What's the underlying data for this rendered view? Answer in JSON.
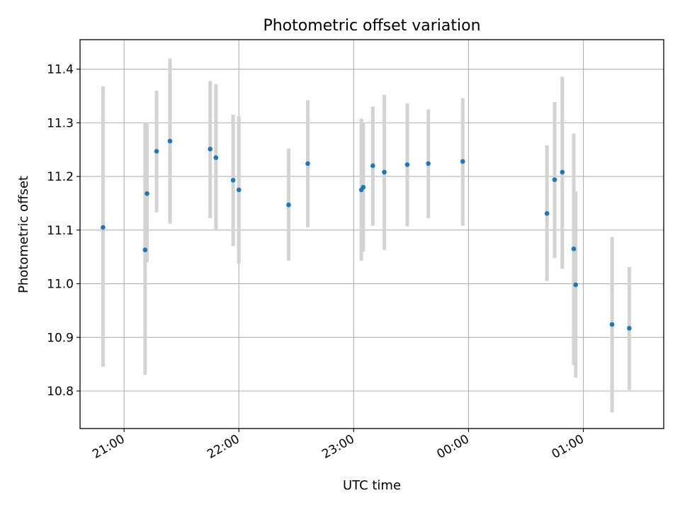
{
  "chart_data": {
    "type": "scatter",
    "title": "Photometric offset variation",
    "xlabel": "UTC time",
    "ylabel": "Photometric offset",
    "x_tick_labels": [
      "21:00",
      "22:00",
      "23:00",
      "00:00",
      "01:00"
    ],
    "y_tick_labels": [
      "10.8",
      "10.9",
      "11.0",
      "11.1",
      "11.2",
      "11.3",
      "11.4"
    ],
    "ylim": [
      10.73,
      11.455
    ],
    "xlim": [
      "20:37",
      "01:42"
    ],
    "grid": true,
    "point_color": "#1f77b4",
    "errorbar_color": "#d3d3d3",
    "points": [
      {
        "t": "20:49",
        "y": 11.105,
        "lo": 10.845,
        "hi": 11.368
      },
      {
        "t": "21:11",
        "y": 11.063,
        "lo": 10.83,
        "hi": 11.3
      },
      {
        "t": "21:12",
        "y": 11.168,
        "lo": 11.04,
        "hi": 11.298
      },
      {
        "t": "21:17",
        "y": 11.247,
        "lo": 11.133,
        "hi": 11.36
      },
      {
        "t": "21:24",
        "y": 11.266,
        "lo": 11.112,
        "hi": 11.42
      },
      {
        "t": "21:45",
        "y": 11.251,
        "lo": 11.122,
        "hi": 11.378
      },
      {
        "t": "21:48",
        "y": 11.235,
        "lo": 11.1,
        "hi": 11.372
      },
      {
        "t": "21:57",
        "y": 11.193,
        "lo": 11.07,
        "hi": 11.315
      },
      {
        "t": "22:00",
        "y": 11.175,
        "lo": 11.037,
        "hi": 11.312
      },
      {
        "t": "22:26",
        "y": 11.147,
        "lo": 11.043,
        "hi": 11.252
      },
      {
        "t": "22:36",
        "y": 11.224,
        "lo": 11.105,
        "hi": 11.342
      },
      {
        "t": "23:04",
        "y": 11.175,
        "lo": 11.043,
        "hi": 11.308
      },
      {
        "t": "23:05",
        "y": 11.18,
        "lo": 11.06,
        "hi": 11.3
      },
      {
        "t": "23:10",
        "y": 11.22,
        "lo": 11.108,
        "hi": 11.33
      },
      {
        "t": "23:16",
        "y": 11.208,
        "lo": 11.063,
        "hi": 11.352
      },
      {
        "t": "23:28",
        "y": 11.222,
        "lo": 11.107,
        "hi": 11.336
      },
      {
        "t": "23:39",
        "y": 11.224,
        "lo": 11.122,
        "hi": 11.325
      },
      {
        "t": "23:57",
        "y": 11.228,
        "lo": 11.108,
        "hi": 11.346
      },
      {
        "t": "00:41",
        "y": 11.131,
        "lo": 11.005,
        "hi": 11.258
      },
      {
        "t": "00:45",
        "y": 11.194,
        "lo": 11.048,
        "hi": 11.339
      },
      {
        "t": "00:49",
        "y": 11.208,
        "lo": 11.028,
        "hi": 11.386
      },
      {
        "t": "00:55",
        "y": 11.065,
        "lo": 10.848,
        "hi": 11.28
      },
      {
        "t": "00:56",
        "y": 10.998,
        "lo": 10.825,
        "hi": 11.172
      },
      {
        "t": "01:15",
        "y": 10.924,
        "lo": 10.76,
        "hi": 11.087
      },
      {
        "t": "01:24",
        "y": 10.917,
        "lo": 10.802,
        "hi": 11.031
      }
    ]
  }
}
